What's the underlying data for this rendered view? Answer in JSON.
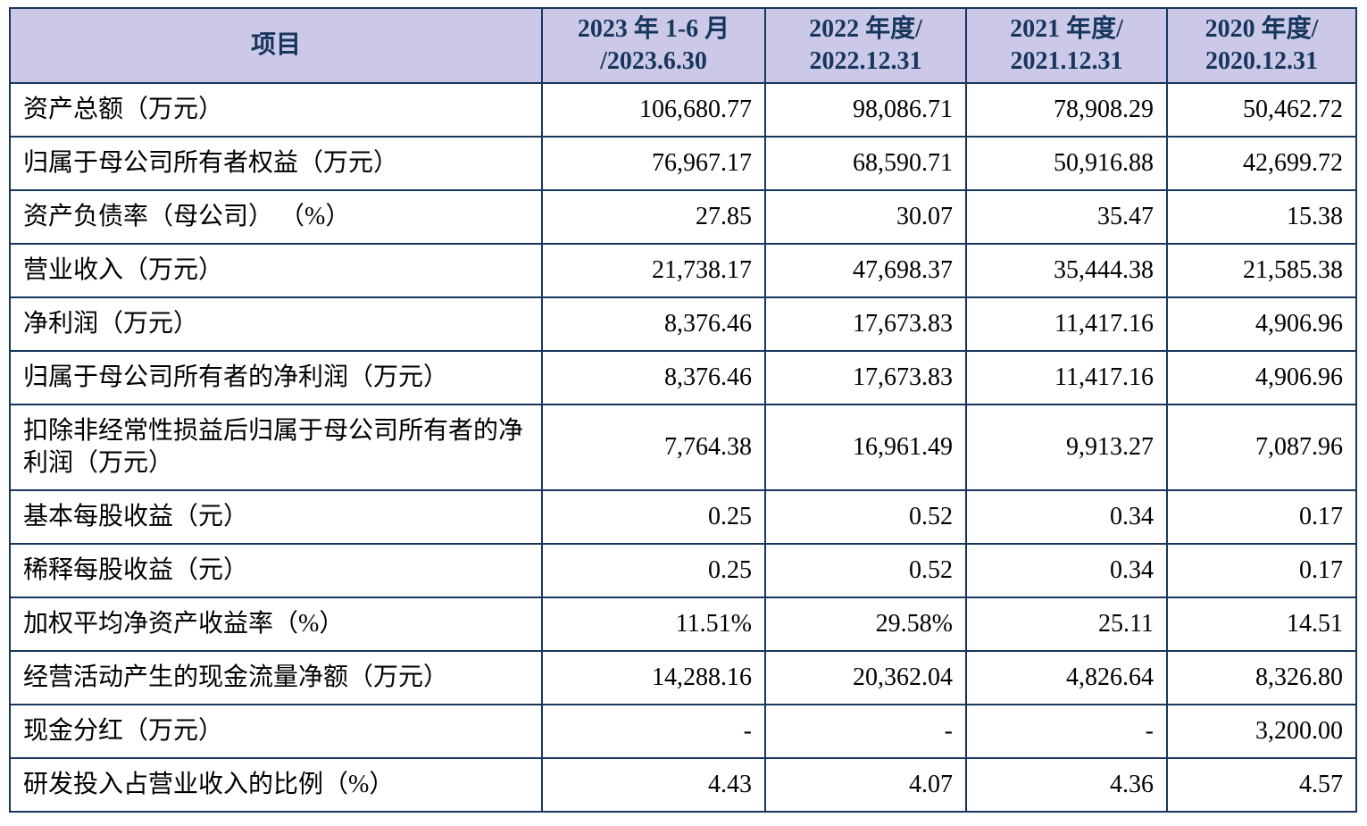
{
  "colors": {
    "header_bg": "#ccc9e8",
    "header_text": "#17365d",
    "border": "#17365d",
    "body_text": "#000000"
  },
  "table": {
    "columns": [
      {
        "label": "项目"
      },
      {
        "line1": "2023 年 1-6 月",
        "line2": "/2023.6.30"
      },
      {
        "line1": "2022 年度/",
        "line2": "2022.12.31"
      },
      {
        "line1": "2021 年度/",
        "line2": "2021.12.31"
      },
      {
        "line1": "2020 年度/",
        "line2": "2020.12.31"
      }
    ],
    "rows": [
      {
        "label": "资产总额（万元）",
        "values": [
          "106,680.77",
          "98,086.71",
          "78,908.29",
          "50,462.72"
        ]
      },
      {
        "label": "归属于母公司所有者权益（万元）",
        "values": [
          "76,967.17",
          "68,590.71",
          "50,916.88",
          "42,699.72"
        ]
      },
      {
        "label": "资产负债率（母公司） （%）",
        "values": [
          "27.85",
          "30.07",
          "35.47",
          "15.38"
        ]
      },
      {
        "label": "营业收入（万元）",
        "values": [
          "21,738.17",
          "47,698.37",
          "35,444.38",
          "21,585.38"
        ]
      },
      {
        "label": "净利润（万元）",
        "values": [
          "8,376.46",
          "17,673.83",
          "11,417.16",
          "4,906.96"
        ]
      },
      {
        "label": "归属于母公司所有者的净利润（万元）",
        "values": [
          "8,376.46",
          "17,673.83",
          "11,417.16",
          "4,906.96"
        ]
      },
      {
        "label": "扣除非经常性损益后归属于母公司所有者的净利润（万元）",
        "values": [
          "7,764.38",
          "16,961.49",
          "9,913.27",
          "7,087.96"
        ]
      },
      {
        "label": "基本每股收益（元）",
        "values": [
          "0.25",
          "0.52",
          "0.34",
          "0.17"
        ]
      },
      {
        "label": "稀释每股收益（元）",
        "values": [
          "0.25",
          "0.52",
          "0.34",
          "0.17"
        ]
      },
      {
        "label": "加权平均净资产收益率（%）",
        "values": [
          "11.51%",
          "29.58%",
          "25.11",
          "14.51"
        ]
      },
      {
        "label": "经营活动产生的现金流量净额（万元）",
        "values": [
          "14,288.16",
          "20,362.04",
          "4,826.64",
          "8,326.80"
        ]
      },
      {
        "label": "现金分红（万元）",
        "values": [
          "-",
          "-",
          "-",
          "3,200.00"
        ]
      },
      {
        "label": "研发投入占营业收入的比例（%）",
        "values": [
          "4.43",
          "4.07",
          "4.36",
          "4.57"
        ]
      }
    ]
  }
}
